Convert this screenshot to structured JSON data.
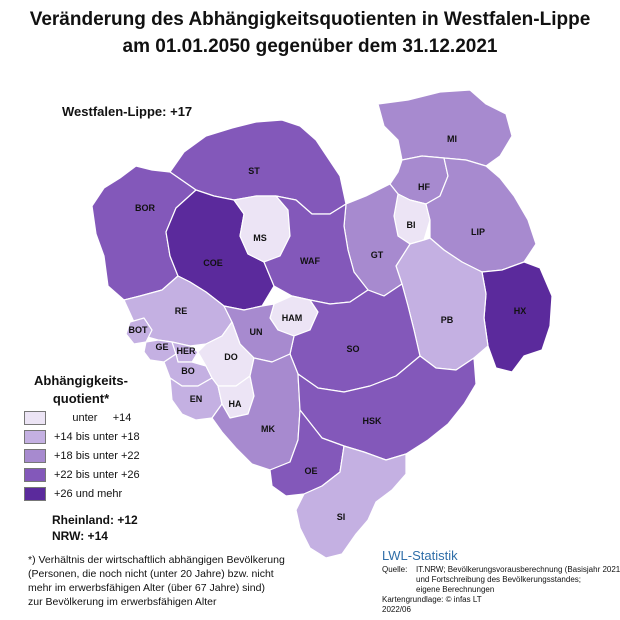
{
  "title": {
    "line1": "Veränderung des Abhängigkeitsquotienten in Westfalen-Lippe",
    "line2": "am 01.01.2050 gegenüber dem 31.12.2021"
  },
  "summary": {
    "westfalen_lippe": "Westfalen-Lippe: +17"
  },
  "legend": {
    "title_line1": "Abhängigkeits-",
    "title_line2": "quotient*",
    "classes": [
      {
        "label": "      unter     +14",
        "color": "#ece4f5"
      },
      {
        "label": "+14 bis unter +18",
        "color": "#c4b0e2"
      },
      {
        "label": "+18 bis unter +22",
        "color": "#a78acf"
      },
      {
        "label": "+22 bis unter +26",
        "color": "#8358ba"
      },
      {
        "label": "+26 und mehr",
        "color": "#5b2a9c"
      }
    ]
  },
  "totals": {
    "rheinland": "Rheinland: +12",
    "nrw": "NRW: +14"
  },
  "footnote": [
    "*) Verhältnis der wirtschaftlich abhängigen Bevölkerung",
    "(Personen, die noch nicht (unter 20 Jahre) bzw. nicht",
    "mehr im erwerbsfähigen Alter (über 67 Jahre) sind)",
    "zur Bevölkerung im erwerbsfähigen Alter"
  ],
  "credit": {
    "title": "LWL-Statistik",
    "rows": [
      {
        "key": "Quelle:",
        "value": "IT.NRW; Bevölkerungsvorausberechnung (Basisjahr 2021)"
      },
      {
        "key": "",
        "value": "und Fortschreibung des Bevölkerungsstandes;"
      },
      {
        "key": "",
        "value": "eigene Berechnungen"
      },
      {
        "key": "",
        "value": "Kartengrundlage: © infas LT"
      },
      {
        "key": "",
        "value": "2022/06"
      }
    ]
  },
  "regions": [
    {
      "code": "MI",
      "class": 2
    },
    {
      "code": "HF",
      "class": 2
    },
    {
      "code": "BI",
      "class": 0
    },
    {
      "code": "LIP",
      "class": 2
    },
    {
      "code": "HX",
      "class": 4
    },
    {
      "code": "PB",
      "class": 1
    },
    {
      "code": "GT",
      "class": 2
    },
    {
      "code": "ST",
      "class": 3
    },
    {
      "code": "BOR",
      "class": 3
    },
    {
      "code": "COE",
      "class": 4
    },
    {
      "code": "MS",
      "class": 0
    },
    {
      "code": "WAF",
      "class": 3
    },
    {
      "code": "HAM",
      "class": 0
    },
    {
      "code": "SO",
      "class": 3
    },
    {
      "code": "RE",
      "class": 1
    },
    {
      "code": "UN",
      "class": 2
    },
    {
      "code": "BOT",
      "class": 1
    },
    {
      "code": "GE",
      "class": 1
    },
    {
      "code": "HER",
      "class": 1
    },
    {
      "code": "BO",
      "class": 1
    },
    {
      "code": "DO",
      "class": 0
    },
    {
      "code": "EN",
      "class": 1
    },
    {
      "code": "HA",
      "class": 0
    },
    {
      "code": "MK",
      "class": 2
    },
    {
      "code": "HSK",
      "class": 3
    },
    {
      "code": "OE",
      "class": 3
    },
    {
      "code": "SI",
      "class": 1
    }
  ]
}
